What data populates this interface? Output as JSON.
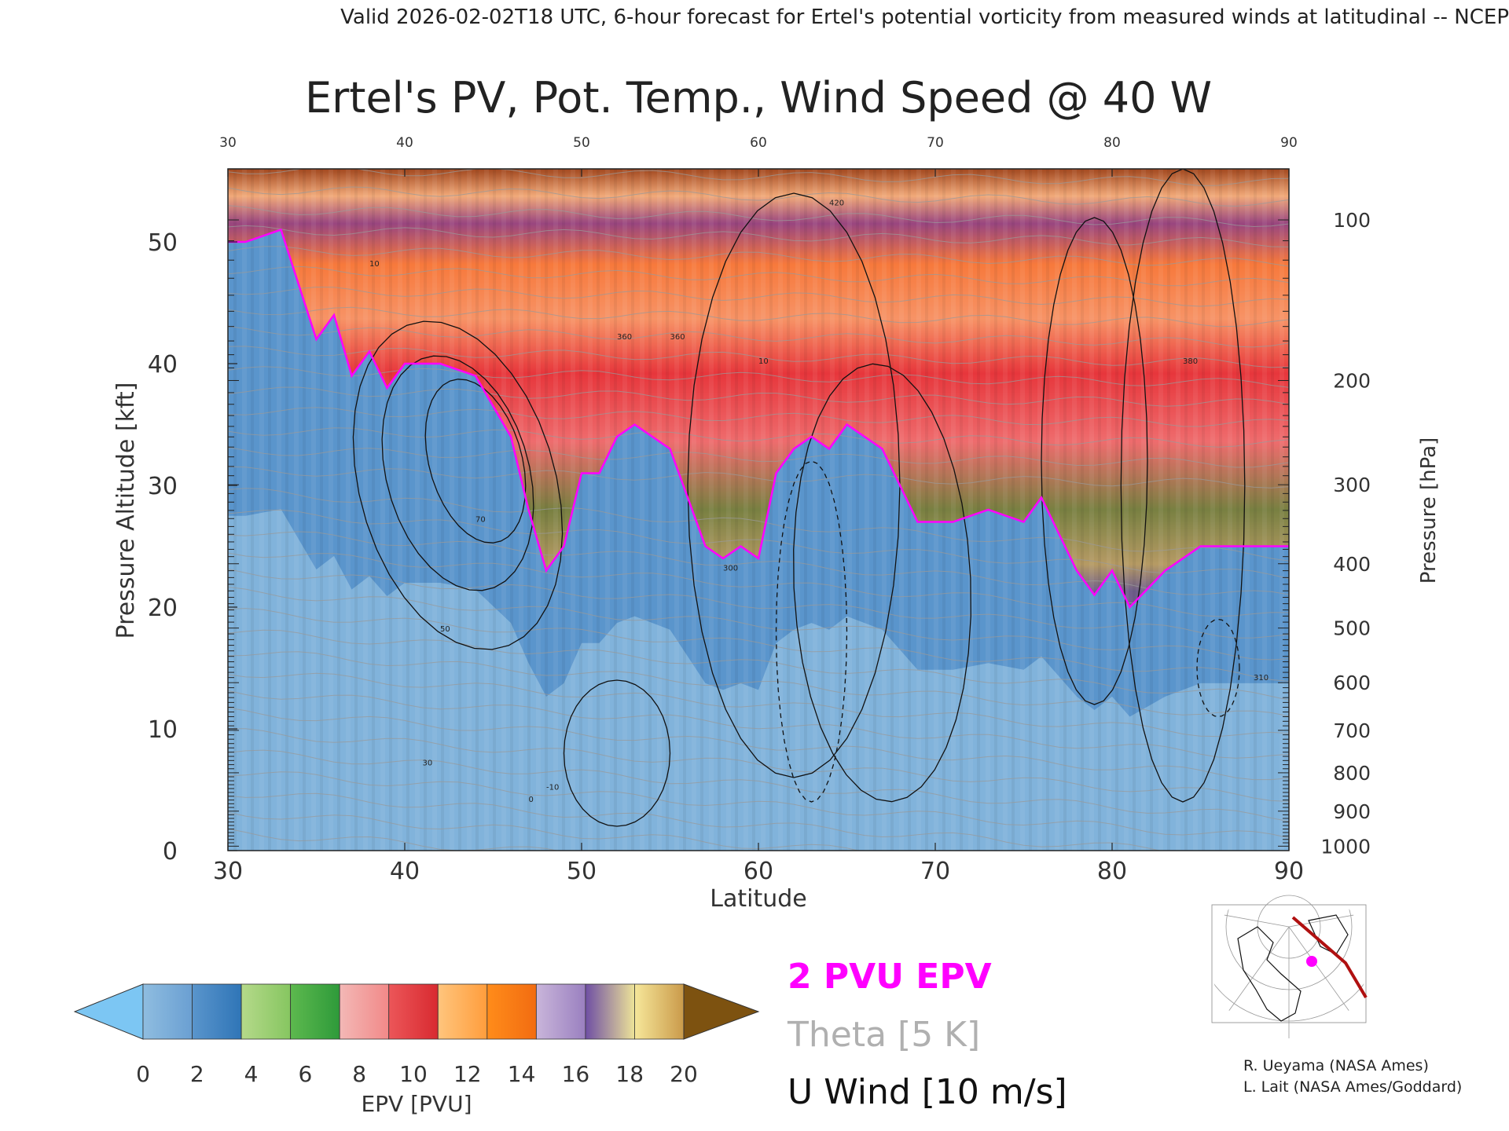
{
  "header": {
    "valid_line": "Valid 2026-02-02T18 UTC, 6-hour forecast for Ertel's potential vorticity from measured winds at latitudinal -- NCEP"
  },
  "chart_data": {
    "type": "heatmap",
    "title": "Ertel's PV, Pot. Temp., Wind Speed @ 40 W",
    "xlabel": "Latitude",
    "ylabel": "Pressure Altitude [kft]",
    "y2label": "Pressure [hPa]",
    "xlim": [
      30,
      90
    ],
    "ylim": [
      0,
      56
    ],
    "x_ticks": [
      30,
      40,
      50,
      60,
      70,
      80,
      90
    ],
    "x_tick_labels": [
      "30",
      "40",
      "50",
      "60",
      "70",
      "80",
      "90"
    ],
    "y_ticks": [
      0,
      10,
      20,
      30,
      40,
      50
    ],
    "y_tick_labels": [
      "0",
      "10",
      "20",
      "30",
      "40",
      "50"
    ],
    "pressure_ticks": [
      {
        "hpa": 100,
        "label": "100"
      },
      {
        "hpa": 200,
        "label": "200"
      },
      {
        "hpa": 300,
        "label": "300"
      },
      {
        "hpa": 400,
        "label": "400"
      },
      {
        "hpa": 500,
        "label": "500"
      },
      {
        "hpa": 600,
        "label": "600"
      },
      {
        "hpa": 700,
        "label": "700"
      },
      {
        "hpa": 800,
        "label": "800"
      },
      {
        "hpa": 900,
        "label": "900"
      },
      {
        "hpa": 1000,
        "label": "1000"
      }
    ],
    "tropopause_2pvu_kft": [
      {
        "lat": 30,
        "kft": 50
      },
      {
        "lat": 31,
        "kft": 50
      },
      {
        "lat": 33,
        "kft": 51
      },
      {
        "lat": 35,
        "kft": 42
      },
      {
        "lat": 36,
        "kft": 44
      },
      {
        "lat": 37,
        "kft": 39
      },
      {
        "lat": 38,
        "kft": 41
      },
      {
        "lat": 39,
        "kft": 38
      },
      {
        "lat": 40,
        "kft": 40
      },
      {
        "lat": 42,
        "kft": 40
      },
      {
        "lat": 44,
        "kft": 39
      },
      {
        "lat": 46,
        "kft": 34
      },
      {
        "lat": 47,
        "kft": 28
      },
      {
        "lat": 48,
        "kft": 23
      },
      {
        "lat": 49,
        "kft": 25
      },
      {
        "lat": 50,
        "kft": 31
      },
      {
        "lat": 51,
        "kft": 31
      },
      {
        "lat": 52,
        "kft": 34
      },
      {
        "lat": 53,
        "kft": 35
      },
      {
        "lat": 54,
        "kft": 34
      },
      {
        "lat": 55,
        "kft": 33
      },
      {
        "lat": 56,
        "kft": 29
      },
      {
        "lat": 57,
        "kft": 25
      },
      {
        "lat": 58,
        "kft": 24
      },
      {
        "lat": 59,
        "kft": 25
      },
      {
        "lat": 60,
        "kft": 24
      },
      {
        "lat": 61,
        "kft": 31
      },
      {
        "lat": 62,
        "kft": 33
      },
      {
        "lat": 63,
        "kft": 34
      },
      {
        "lat": 64,
        "kft": 33
      },
      {
        "lat": 65,
        "kft": 35
      },
      {
        "lat": 67,
        "kft": 33
      },
      {
        "lat": 69,
        "kft": 27
      },
      {
        "lat": 71,
        "kft": 27
      },
      {
        "lat": 73,
        "kft": 28
      },
      {
        "lat": 75,
        "kft": 27
      },
      {
        "lat": 76,
        "kft": 29
      },
      {
        "lat": 78,
        "kft": 23
      },
      {
        "lat": 79,
        "kft": 21
      },
      {
        "lat": 80,
        "kft": 23
      },
      {
        "lat": 81,
        "kft": 20
      },
      {
        "lat": 83,
        "kft": 23
      },
      {
        "lat": 85,
        "kft": 25
      },
      {
        "lat": 87,
        "kft": 25
      },
      {
        "lat": 90,
        "kft": 25
      }
    ],
    "contour_labels": [
      "10",
      "30",
      "50",
      "70",
      "0",
      "-10",
      "300",
      "310",
      "360",
      "380",
      "420"
    ],
    "colorbar": {
      "label": "EPV [PVU]",
      "ticks": [
        "0",
        "2",
        "4",
        "6",
        "8",
        "10",
        "12",
        "14",
        "16",
        "18",
        "20"
      ],
      "under_color": "#7cc6f3",
      "over_color": "#7d5210",
      "bands": [
        [
          "#8fbde0",
          "#6a9fd2"
        ],
        [
          "#5a95cc",
          "#2f75b7"
        ],
        [
          "#b5d98a",
          "#86c660"
        ],
        [
          "#5db94e",
          "#2e9a3a"
        ],
        [
          "#f3b8b6",
          "#f28988"
        ],
        [
          "#ec5659",
          "#d82a30"
        ],
        [
          "#ffc57d",
          "#ff9d3c"
        ],
        [
          "#ff8c1a",
          "#f26c11"
        ],
        [
          "#c9b5da",
          "#9a80c0"
        ],
        [
          "#6f4fa4",
          "#ede398"
        ],
        [
          "#f6e79a",
          "#ca9a4a"
        ]
      ]
    },
    "legend": [
      {
        "text": "2 PVU EPV",
        "color": "#ff00ff"
      },
      {
        "text": "Theta [5 K]",
        "color": "#b0b0b0"
      },
      {
        "text": "U Wind [10 m/s]",
        "color": "#111111"
      }
    ]
  },
  "credits": {
    "line1": "R. Ueyama (NASA Ames)",
    "line2": "L. Lait (NASA Ames/Goddard)"
  },
  "inset_map": {
    "track_color": "#b01010",
    "marker_color": "#ff00ff"
  }
}
